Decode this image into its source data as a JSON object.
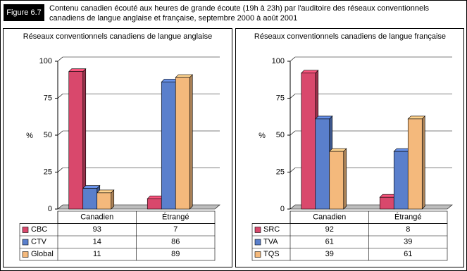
{
  "figure_label": "Figure 6.7",
  "title": "Contenu canadien écouté aux heures de grande écoute (19h à 23h) par l'auditoire des réseaux conventionnels canadiens de langue anglaise et française, septembre 2000 à août 2001",
  "chart_data": [
    {
      "type": "bar",
      "title": "Réseaux conventionnels canadiens de langue anglaise",
      "y_label": "%",
      "categories": [
        "Canadien",
        "Étrangé"
      ],
      "series": [
        {
          "name": "CBC",
          "color": "#d9486c",
          "values": [
            93,
            7
          ]
        },
        {
          "name": "CTV",
          "color": "#5a7fcc",
          "values": [
            14,
            86
          ]
        },
        {
          "name": "Global",
          "color": "#f4b97c",
          "values": [
            11,
            89
          ]
        }
      ],
      "ylim": [
        0,
        100
      ],
      "yticks": [
        0,
        25,
        50,
        75,
        100
      ],
      "grid": true
    },
    {
      "type": "bar",
      "title": "Réseaux conventionnels canadiens de langue française",
      "y_label": "%",
      "categories": [
        "Canadien",
        "Étrangé"
      ],
      "series": [
        {
          "name": "SRC",
          "color": "#d9486c",
          "values": [
            92,
            8
          ]
        },
        {
          "name": "TVA",
          "color": "#5a7fcc",
          "values": [
            61,
            39
          ]
        },
        {
          "name": "TQS",
          "color": "#f4b97c",
          "values": [
            39,
            61
          ]
        }
      ],
      "ylim": [
        0,
        100
      ],
      "yticks": [
        0,
        25,
        50,
        75,
        100
      ],
      "grid": true
    }
  ]
}
